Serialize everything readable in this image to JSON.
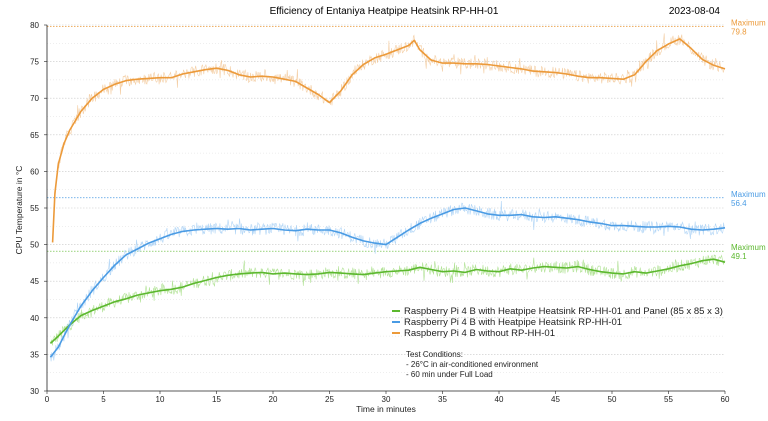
{
  "chart_data": {
    "type": "line",
    "title": "Efficiency of Entaniya Heatpipe Heatsink RP-HH-01",
    "date": "2023-08-04",
    "xlabel": "Time in minutes",
    "ylabel": "CPU Temperature in °C",
    "xlim": [
      0,
      60
    ],
    "ylim": [
      30,
      80
    ],
    "xticks": [
      0,
      5,
      10,
      15,
      20,
      25,
      30,
      35,
      40,
      45,
      50,
      55,
      60
    ],
    "yticks": [
      30,
      35,
      40,
      45,
      50,
      55,
      60,
      65,
      70,
      75,
      80
    ],
    "grid": true,
    "legend_position": "bottom-right",
    "series": [
      {
        "name": "Raspberry Pi 4 B with Heatpipe Heatsink RP-HH-01 and Panel (85 x 85 x 3)",
        "color": "#5cb82e",
        "raw_color": "#a8df8a",
        "max_label": "Maximum",
        "max_value": "49.1",
        "max": 49.1,
        "x": [
          0.3,
          1,
          2,
          3,
          4,
          5,
          6,
          7,
          8,
          9,
          10,
          11,
          12,
          13,
          14,
          15,
          16,
          17,
          18,
          19,
          20,
          21,
          22,
          23,
          24,
          25,
          26,
          27,
          28,
          29,
          30,
          31,
          32,
          33,
          34,
          35,
          36,
          37,
          38,
          39,
          40,
          41,
          42,
          43,
          44,
          45,
          46,
          47,
          48,
          49,
          50,
          51,
          52,
          53,
          54,
          55,
          56,
          57,
          58,
          59,
          60
        ],
        "values": [
          36.5,
          37.5,
          39.0,
          40.3,
          41.0,
          41.6,
          42.2,
          42.6,
          43.1,
          43.4,
          43.7,
          43.9,
          44.2,
          44.7,
          45.1,
          45.5,
          45.8,
          46.0,
          46.1,
          46.2,
          46.0,
          46.1,
          46.0,
          45.9,
          46.0,
          46.2,
          46.1,
          46.0,
          45.9,
          46.1,
          46.3,
          46.4,
          46.5,
          46.9,
          46.6,
          46.3,
          46.4,
          46.2,
          46.6,
          46.4,
          46.3,
          46.7,
          46.5,
          46.8,
          47.0,
          46.9,
          46.8,
          47.0,
          46.6,
          46.3,
          46.1,
          46.0,
          46.3,
          46.1,
          46.4,
          46.7,
          47.1,
          47.4,
          47.8,
          48.0,
          47.6
        ]
      },
      {
        "name": "Raspberry Pi 4 B with Heatpipe Heatsink RP-HH-01",
        "color": "#4a9be4",
        "raw_color": "#a9d0f5",
        "max_label": "Maximum",
        "max_value": "56.4",
        "max": 56.4,
        "x": [
          0.3,
          1,
          2,
          3,
          4,
          5,
          6,
          7,
          8,
          9,
          10,
          11,
          12,
          13,
          14,
          15,
          16,
          17,
          18,
          19,
          20,
          21,
          22,
          23,
          24,
          25,
          26,
          27,
          28,
          29,
          30,
          31,
          32,
          33,
          34,
          35,
          36,
          37,
          38,
          39,
          40,
          41,
          42,
          43,
          44,
          45,
          46,
          47,
          48,
          49,
          50,
          51,
          52,
          53,
          54,
          55,
          56,
          57,
          58,
          59,
          60
        ],
        "values": [
          34.6,
          36.0,
          39.0,
          41.6,
          43.7,
          45.5,
          47.2,
          48.6,
          49.4,
          50.2,
          50.8,
          51.4,
          51.8,
          52.0,
          52.1,
          52.2,
          52.1,
          52.2,
          52.0,
          52.1,
          52.2,
          52.0,
          51.9,
          52.1,
          52.0,
          52.0,
          51.6,
          51.0,
          50.5,
          50.2,
          50.0,
          51.0,
          52.0,
          52.9,
          53.6,
          54.2,
          54.8,
          55.0,
          54.6,
          54.2,
          54.0,
          54.0,
          54.1,
          53.8,
          53.7,
          53.8,
          53.6,
          53.4,
          53.1,
          52.9,
          52.6,
          52.6,
          52.5,
          52.4,
          52.4,
          52.5,
          52.4,
          52.1,
          52.0,
          52.1,
          52.3
        ]
      },
      {
        "name": "Raspberry Pi 4 B without RP-HH-01",
        "color": "#ec9a3a",
        "raw_color": "#f3c99a",
        "max_label": "Maximum",
        "max_value": "79.8",
        "max": 79.8,
        "x": [
          0.5,
          0.7,
          1,
          1.5,
          2,
          3,
          4,
          5,
          6,
          7,
          8,
          9,
          10,
          11,
          12,
          13,
          14,
          15,
          16,
          17,
          18,
          19,
          20,
          21,
          22,
          23,
          24,
          25,
          26,
          27,
          28,
          29,
          30,
          31,
          32,
          32.5,
          33,
          34,
          35,
          36,
          37,
          38,
          39,
          40,
          41,
          42,
          43,
          44,
          45,
          46,
          47,
          48,
          49,
          50,
          51,
          52,
          53,
          54,
          55,
          56,
          57,
          58,
          59,
          60
        ],
        "values": [
          50.3,
          57.0,
          61.0,
          63.8,
          65.6,
          68.2,
          70.0,
          71.2,
          71.9,
          72.4,
          72.6,
          72.7,
          72.8,
          72.8,
          73.3,
          73.6,
          73.9,
          74.1,
          73.8,
          73.2,
          72.9,
          73.0,
          72.9,
          72.6,
          72.3,
          71.4,
          70.5,
          69.4,
          71.0,
          73.2,
          74.6,
          75.5,
          76.0,
          76.6,
          77.2,
          77.9,
          76.6,
          75.2,
          74.8,
          74.8,
          74.7,
          74.7,
          74.6,
          74.4,
          74.2,
          74.0,
          73.7,
          73.6,
          73.5,
          73.3,
          73.0,
          72.8,
          72.8,
          72.7,
          72.6,
          73.2,
          75.0,
          76.5,
          77.4,
          78.1,
          76.8,
          75.3,
          74.5,
          74.0
        ]
      }
    ],
    "test_conditions": {
      "heading": "Test Conditions:",
      "lines": [
        "- 26°C in air-conditioned environment",
        "- 60 min under Full Load"
      ]
    }
  }
}
